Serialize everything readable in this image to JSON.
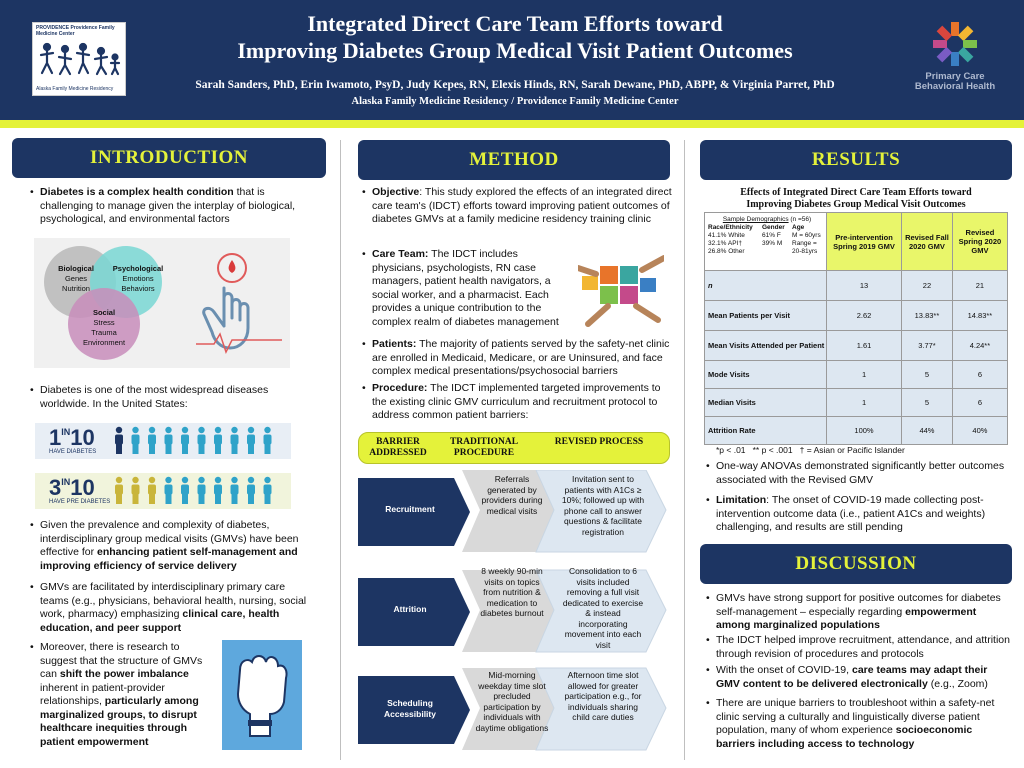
{
  "header": {
    "title_line1": "Integrated Direct Care Team Efforts toward",
    "title_line2": "Improving Diabetes Group Medical Visit Patient Outcomes",
    "authors": "Sarah Sanders, PhD, Erin Iwamoto, PsyD, Judy Kepes, RN, Elexis Hinds, RN, Sarah Dewane, PhD, ABPP, & Virginia Parret, PhD",
    "affiliation": "Alaska Family Medicine Residency / Providence Family Medicine Center",
    "logo_left_top": "PROVIDENCE Providence Family Medicine Center",
    "logo_left_bottom": "Alaska Family Medicine Residency",
    "logo_right_text": "Primary Care Behavioral Health"
  },
  "introduction": {
    "heading": "INTRODUCTION",
    "b1_bold": "Diabetes is a complex health condition",
    "b1_rest": " that is challenging to manage given the interplay of biological, psychological, and environmental factors",
    "venn": {
      "bio_title": "Biological",
      "bio_1": "Genes",
      "bio_2": "Nutrition",
      "psy_title": "Psychological",
      "psy_1": "Emotions",
      "psy_2": "Behaviors",
      "soc_title": "Social",
      "soc_1": "Stress",
      "soc_2": "Trauma",
      "soc_3": "Environment"
    },
    "b2": "Diabetes is one of the most widespread diseases worldwide. In the United States:",
    "stat1_num": "1",
    "stat1_in": "IN",
    "stat1_den": "10",
    "stat1_cap": "HAVE DIABETES",
    "stat2_num": "3",
    "stat2_in": "IN",
    "stat2_den": "10",
    "stat2_cap": "HAVE PRE DIABETES",
    "b3_rest": "Given the prevalence and complexity of diabetes, interdisciplinary group medical visits (GMVs) have been effective for ",
    "b3_bold": "enhancing patient self-management and improving efficiency of service delivery",
    "b4_rest": "GMVs are facilitated by interdisciplinary primary care teams (e.g., physicians, behavioral health, nursing, social work, pharmacy) emphasizing ",
    "b4_bold": "clinical care, health education, and peer support",
    "b5_a": "Moreover, there is research to suggest that the structure of GMVs can ",
    "b5_b": "shift the power imbalance",
    "b5_c": " inherent in patient-provider relationships, ",
    "b5_d": "particularly among marginalized groups, to disrupt healthcare inequities through patient empowerment"
  },
  "method": {
    "heading": "METHOD",
    "obj_label": "Objective",
    "obj_text": ": This study explored the effects of an integrated direct care team's (IDCT) efforts toward improving patient outcomes of diabetes GMVs at a family medicine residency training clinic",
    "team_label": "Care Team:",
    "team_text": " The IDCT includes physicians, psychologists, RN case managers, patient health navigators, a social worker, and a pharmacist. Each provides a unique contribution to the complex realm of diabetes management",
    "pat_label": "Patients:",
    "pat_text": " The majority of patients served by the safety-net clinic are enrolled in Medicaid, Medicare, or are Uninsured, and face complex medical presentations/psychosocial barriers",
    "proc_label": "Procedure:",
    "proc_text": " The IDCT implemented targeted improvements to the existing clinic GMV curriculum and recruitment protocol to address common patient barriers:",
    "col1": "BARRIER ADDRESSED",
    "col2": "TRADITIONAL PROCEDURE",
    "col3": "REVISED PROCESS",
    "rows": [
      {
        "barrier": "Recruitment",
        "traditional": "Referrals generated by providers during medical visits",
        "revised": "Invitation sent to patients with A1Cs ≥ 10%; followed up with phone call to answer questions & facilitate registration"
      },
      {
        "barrier": "Attrition",
        "traditional": "8 weekly 90-min visits on topics from nutrition & medication to diabetes burnout",
        "revised": "Consolidation to 6 visits included removing a full visit dedicated to exercise & instead incorporating movement into each visit"
      },
      {
        "barrier": "Scheduling Accessibility",
        "traditional": "Mid-morning weekday time slot precluded participation by individuals with daytime obligations",
        "revised": "Afternoon time slot allowed for greater participation e.g., for individuals sharing child care duties"
      }
    ]
  },
  "results": {
    "heading": "RESULTS",
    "table_title_1": "Effects of Integrated Direct Care Team Efforts toward",
    "table_title_2": "Improving Diabetes Group Medical Visit Outcomes",
    "demo_title": "Sample Demographics",
    "demo_n": " (n =56)",
    "demo_h1": "Race/Ethnicity",
    "demo_h2": "Gender",
    "demo_h3": "Age",
    "demo_r1": "41.1% White",
    "demo_g1": "61% F",
    "demo_a1": "M = 60yrs",
    "demo_r2": "32.1% API†",
    "demo_g2": "39% M",
    "demo_a2": "Range =",
    "demo_r3": "26.8% Other",
    "demo_a3": "20-81yrs",
    "cols": [
      "Pre-intervention Spring 2019 GMV",
      "Revised Fall 2020 GMV",
      "Revised Spring 2020 GMV"
    ],
    "rows": [
      {
        "label": "n",
        "v": [
          "13",
          "22",
          "21"
        ]
      },
      {
        "label": "Mean Patients per Visit",
        "v": [
          "2.62",
          "13.83**",
          "14.83**"
        ]
      },
      {
        "label": "Mean Visits Attended per Patient",
        "v": [
          "1.61",
          "3.77*",
          "4.24**"
        ]
      },
      {
        "label": "Mode Visits",
        "v": [
          "1",
          "5",
          "6"
        ]
      },
      {
        "label": "Median Visits",
        "v": [
          "1",
          "5",
          "6"
        ]
      },
      {
        "label": "Attrition Rate",
        "v": [
          "100%",
          "44%",
          "40%"
        ]
      }
    ],
    "footnote": "*p < .01   ** p < .001   † = Asian or Pacific Islander",
    "b1": "One-way ANOVAs demonstrated significantly better outcomes associated with the Revised GMV",
    "b2_label": "Limitation",
    "b2_text": ": The onset of COVID-19 made collecting post-intervention outcome data (i.e., patient A1Cs and weights) challenging, and results are still pending"
  },
  "discussion": {
    "heading": "DISCUSSION",
    "b1_rest": "GMVs have strong support for positive outcomes for diabetes self-management – especially regarding ",
    "b1_bold": "empowerment among marginalized populations",
    "b2": "The IDCT helped improve recruitment, attendance, and attrition through revision of procedures and protocols",
    "b3_a": "With the onset of COVID-19, ",
    "b3_b": "care teams may adapt their GMV content to be delivered electronically",
    "b3_c": " (e.g., Zoom)",
    "b4_rest": "There are unique barriers to troubleshoot within a safety-net clinic serving a culturally and linguistically diverse patient population, many of whom experience ",
    "b4_bold": "socioeconomic barriers including access to technology"
  },
  "colors": {
    "navy": "#1d3563",
    "accent": "#e4f23a",
    "table_shade": "#dde7f1"
  }
}
